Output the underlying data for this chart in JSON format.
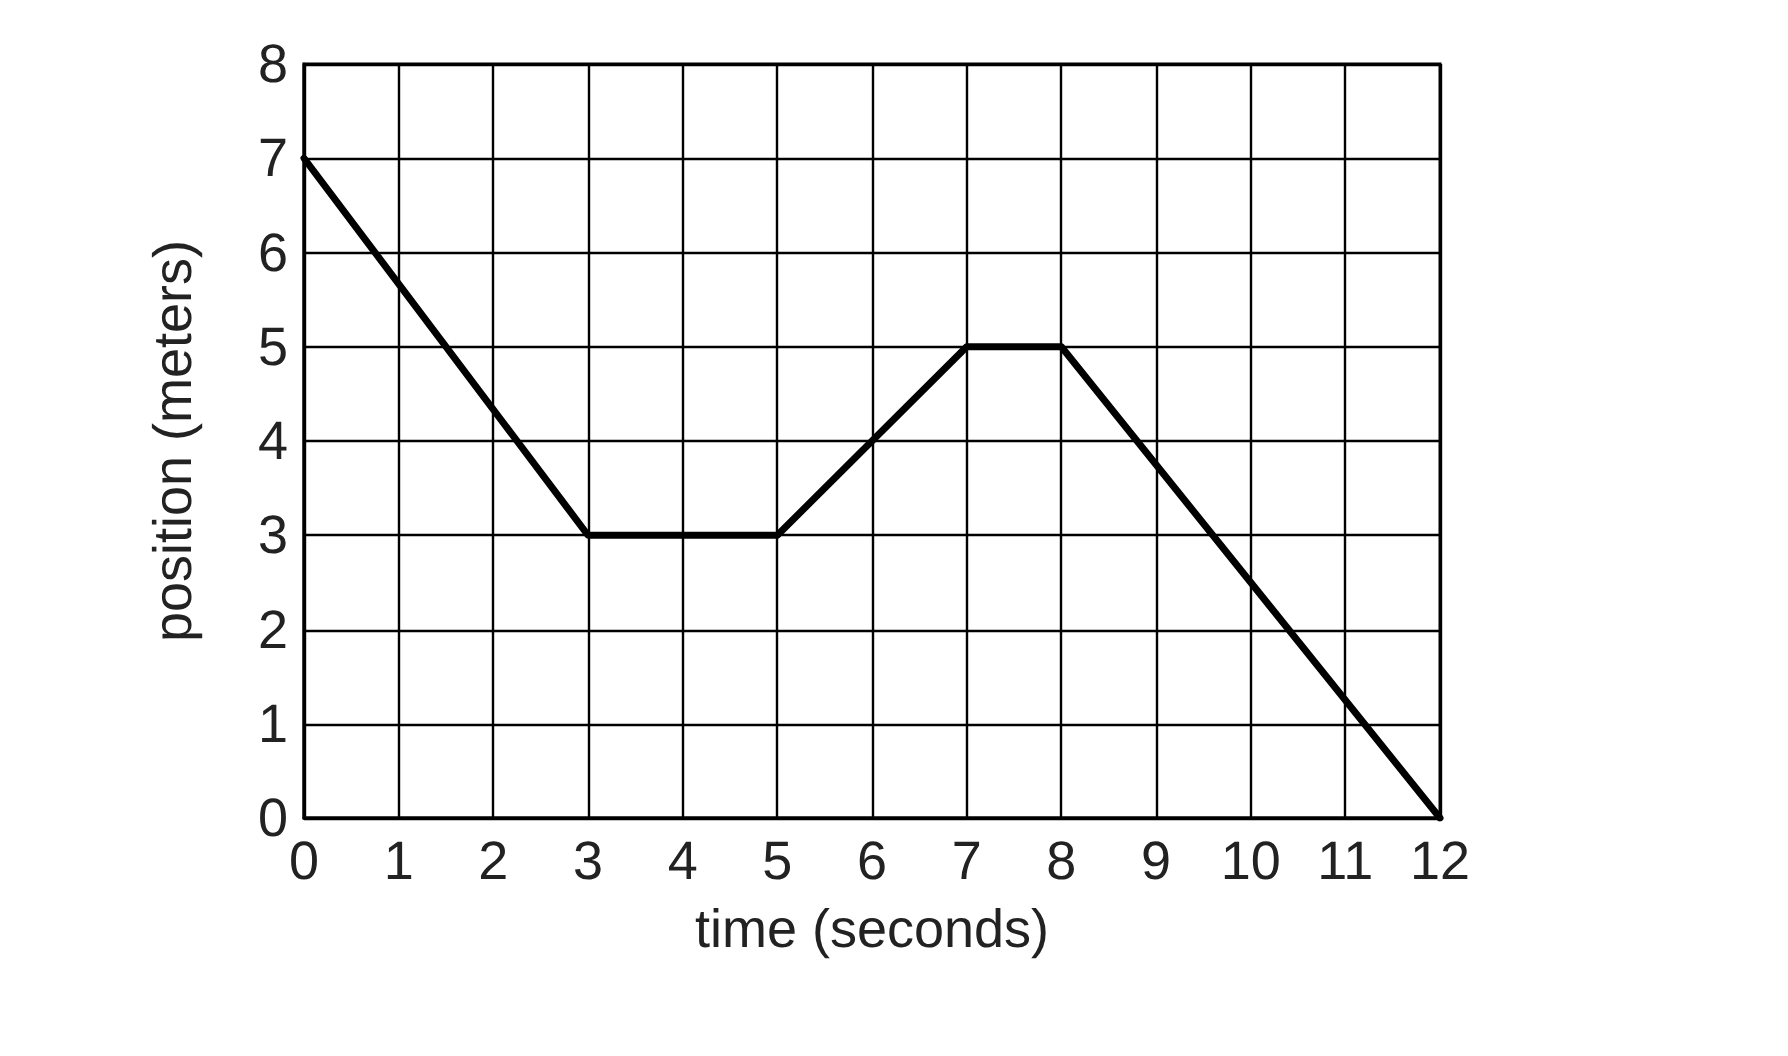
{
  "chart_data": {
    "type": "line",
    "xlabel": "time (seconds)",
    "ylabel": "position (meters)",
    "x": [
      0,
      3,
      5,
      7,
      8,
      12
    ],
    "series": [
      {
        "color": "#000000",
        "values": [
          7,
          3,
          3,
          5,
          5,
          0
        ]
      }
    ],
    "xlim": [
      0,
      12
    ],
    "xticks": [
      0,
      1,
      2,
      3,
      4,
      5,
      6,
      7,
      8,
      9,
      10,
      11,
      12
    ],
    "ylim": [
      0,
      8
    ],
    "yticks": [
      0,
      1,
      2,
      3,
      4,
      5,
      6,
      7,
      8
    ],
    "grid": true,
    "marker": "none",
    "line_style": "solid"
  }
}
